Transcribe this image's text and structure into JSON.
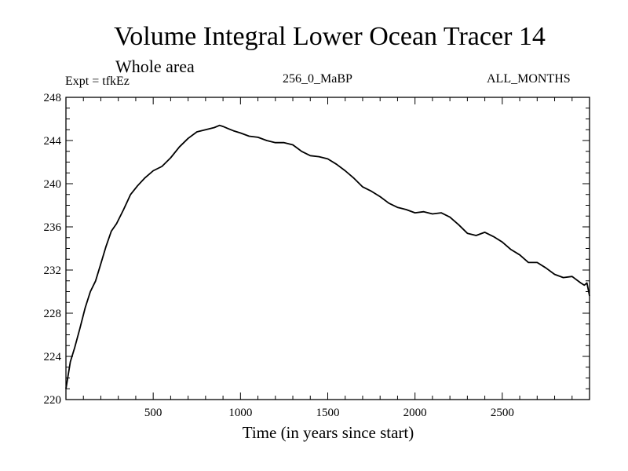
{
  "header": {
    "title": "Volume Integral Lower Ocean Tracer 14",
    "subtitle": "Whole area",
    "expt_label": "Expt = tfkEz",
    "center_label": "256_0_MaBP",
    "right_label": "ALL_MONTHS"
  },
  "chart_data": {
    "type": "line",
    "title": "Volume Integral Lower Ocean Tracer 14",
    "xlabel": "Time (in years since start)",
    "ylabel": "",
    "xlim": [
      0,
      3000
    ],
    "ylim": [
      220,
      248
    ],
    "xticks": [
      500,
      1000,
      1500,
      2000,
      2500
    ],
    "xtick_labels": [
      "500",
      "1000",
      "1500",
      "2000",
      "2500"
    ],
    "yticks": [
      220,
      224,
      228,
      232,
      236,
      240,
      244,
      248
    ],
    "ytick_labels": [
      "220",
      "224",
      "228",
      "232",
      "236",
      "240",
      "244",
      "248"
    ],
    "grid": false,
    "series": [
      {
        "color": "#000000",
        "x": [
          0,
          25,
          50,
          80,
          110,
          140,
          170,
          200,
          230,
          260,
          290,
          330,
          370,
          410,
          450,
          500,
          550,
          600,
          650,
          700,
          750,
          800,
          850,
          880,
          900,
          930,
          960,
          1000,
          1050,
          1100,
          1150,
          1200,
          1250,
          1300,
          1350,
          1400,
          1450,
          1500,
          1550,
          1600,
          1650,
          1700,
          1750,
          1800,
          1850,
          1900,
          1950,
          2000,
          2050,
          2100,
          2150,
          2200,
          2250,
          2300,
          2350,
          2400,
          2450,
          2500,
          2550,
          2600,
          2650,
          2700,
          2750,
          2800,
          2850,
          2900,
          2950,
          2970,
          2985,
          3000
        ],
        "y": [
          221.0,
          223.5,
          224.8,
          226.6,
          228.5,
          230.0,
          231.0,
          232.6,
          234.2,
          235.6,
          236.3,
          237.6,
          239.0,
          239.8,
          240.5,
          241.2,
          241.6,
          242.4,
          243.4,
          244.2,
          244.8,
          245.0,
          245.2,
          245.4,
          245.3,
          245.1,
          244.9,
          244.7,
          244.4,
          244.3,
          244.0,
          243.8,
          243.8,
          243.6,
          243.0,
          242.6,
          242.5,
          242.3,
          241.8,
          241.2,
          240.5,
          239.7,
          239.3,
          238.8,
          238.2,
          237.8,
          237.6,
          237.3,
          237.4,
          237.2,
          237.3,
          236.9,
          236.2,
          235.4,
          235.2,
          235.5,
          235.1,
          234.6,
          233.9,
          233.4,
          232.7,
          232.7,
          232.2,
          231.6,
          231.3,
          231.4,
          230.8,
          230.6,
          230.8,
          229.6
        ]
      }
    ]
  }
}
